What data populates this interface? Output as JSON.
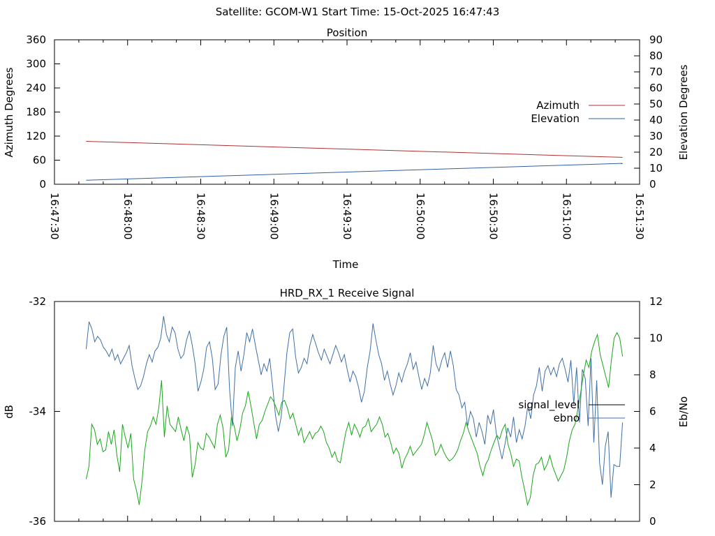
{
  "page": {
    "header": "Satellite: GCOM-W1    Start Time: 15-Oct-2025 16:47:43"
  },
  "chart_data": [
    {
      "type": "line",
      "title": "Position",
      "xlabel": "Time",
      "ylabel": "Azimuth Degrees",
      "y2label": "Elevation Degrees",
      "x_range": [
        "16:47:30",
        "16:51:30"
      ],
      "x_ticks": [
        "16:47:30",
        "16:48:00",
        "16:48:30",
        "16:49:00",
        "16:49:30",
        "16:50:00",
        "16:50:30",
        "16:51:00",
        "16:51:30"
      ],
      "ylim": [
        0,
        360
      ],
      "y_ticks": [
        0,
        60,
        120,
        180,
        240,
        300,
        360
      ],
      "y2lim": [
        0,
        90
      ],
      "y2_ticks": [
        0,
        10,
        20,
        30,
        40,
        50,
        60,
        70,
        80,
        90
      ],
      "legend_position": "right",
      "series": [
        {
          "name": "Azimuth",
          "axis": "y",
          "color": "#b03030",
          "x": [
            "16:47:43",
            "16:51:23"
          ],
          "y": [
            107,
            67
          ]
        },
        {
          "name": "Elevation",
          "axis": "y2",
          "color": "#3060a0",
          "x": [
            "16:47:43",
            "16:51:23"
          ],
          "y": [
            2.5,
            13
          ]
        }
      ]
    },
    {
      "type": "line",
      "title": "HRD_RX_1 Receive Signal",
      "ylabel": "dB",
      "y2label": "Eb/No",
      "ylim": [
        -36,
        -32
      ],
      "y_ticks": [
        -36,
        -34,
        -32
      ],
      "y2lim": [
        0,
        12
      ],
      "y2_ticks": [
        0,
        2,
        4,
        6,
        8,
        10,
        12
      ],
      "legend_position": "right",
      "series": [
        {
          "name": "signal_level",
          "axis": "y",
          "color": "#000000",
          "values": []
        },
        {
          "name": "ebno",
          "axis": "y2",
          "color": "#3f6fa8",
          "values": [
            9.4,
            10.9,
            10.5,
            9.8,
            10.1,
            9.9,
            9.5,
            9.3,
            9.0,
            9.4,
            8.8,
            9.1,
            8.6,
            8.9,
            9.2,
            9.6,
            8.5,
            7.8,
            7.2,
            7.4,
            7.9,
            8.6,
            9.1,
            8.7,
            9.3,
            9.5,
            10.0,
            11.2,
            10.2,
            9.8,
            10.6,
            10.3,
            9.4,
            8.9,
            9.1,
            9.9,
            10.4,
            9.6,
            8.6,
            7.1,
            7.6,
            8.3,
            9.5,
            9.8,
            8.9,
            7.2,
            7.5,
            9.1,
            10.1,
            10.6,
            7.2,
            5.2,
            8.4,
            9.3,
            8.2,
            9.1,
            10.3,
            9.8,
            10.5,
            9.6,
            8.8,
            8.0,
            8.6,
            8.2,
            8.9,
            7.4,
            5.8,
            4.9,
            5.7,
            7.4,
            9.2,
            10.3,
            10.5,
            9.0,
            8.1,
            8.4,
            8.9,
            8.6,
            9.6,
            10.2,
            9.7,
            9.2,
            8.8,
            9.4,
            9.0,
            8.6,
            9.1,
            9.6,
            9.2,
            8.7,
            9.1,
            8.3,
            7.6,
            8.2,
            7.9,
            7.3,
            6.5,
            7.1,
            8.4,
            9.3,
            10.8,
            9.9,
            9.1,
            8.6,
            7.7,
            8.2,
            7.5,
            6.9,
            7.4,
            8.1,
            7.6,
            8.2,
            8.6,
            9.2,
            8.3,
            8.7,
            7.9,
            7.2,
            7.8,
            7.4,
            8.1,
            9.6,
            8.6,
            8.2,
            8.8,
            9.2,
            8.4,
            9.3,
            8.5,
            7.2,
            6.9,
            6.2,
            6.5,
            5.2,
            6.0,
            5.6,
            4.6,
            5.4,
            4.9,
            4.2,
            5.8,
            5.3,
            6.1,
            4.8,
            4.1,
            3.4,
            4.2,
            5.1,
            4.6,
            5.7,
            4.3,
            5.0,
            4.5,
            5.2,
            6.3,
            5.6,
            6.9,
            7.4,
            8.4,
            7.1,
            8.2,
            8.5,
            8.0,
            8.4,
            7.9,
            8.6,
            8.9,
            8.3,
            7.6,
            8.8,
            6.4,
            8.4,
            5.4,
            8.3,
            7.8,
            5.2,
            8.9,
            4.3,
            7.7,
            3.2,
            2.0,
            4.1,
            4.9,
            1.3,
            3.1,
            3.0,
            3.0,
            5.4
          ],
          "segments_note": "plotted across full panel width"
        },
        {
          "name": "",
          "axis": "y2",
          "color": "#1aa51a",
          "values": [
            2.3,
            3.0,
            5.3,
            5.0,
            4.2,
            4.5,
            3.8,
            3.9,
            4.9,
            4.2,
            5.0,
            3.6,
            2.7,
            5.3,
            4.6,
            4.0,
            4.8,
            2.3,
            1.7,
            0.9,
            2.2,
            3.9,
            4.9,
            5.2,
            5.7,
            5.3,
            6.2,
            7.7,
            4.6,
            6.3,
            5.3,
            5.1,
            4.9,
            5.7,
            5.0,
            4.4,
            5.2,
            4.7,
            2.4,
            3.1,
            4.3,
            4.0,
            3.9,
            4.8,
            4.6,
            4.3,
            4.0,
            5.3,
            5.8,
            5.1,
            3.5,
            3.9,
            5.7,
            5.2,
            4.4,
            5.0,
            5.9,
            6.3,
            7.1,
            6.3,
            5.4,
            4.5,
            5.3,
            5.5,
            6.0,
            6.4,
            6.8,
            6.6,
            6.2,
            5.8,
            6.5,
            6.6,
            6.2,
            5.6,
            5.9,
            5.3,
            4.7,
            5.1,
            4.3,
            4.6,
            4.9,
            4.5,
            4.8,
            4.9,
            5.2,
            4.9,
            4.3,
            4.0,
            3.5,
            3.8,
            3.3,
            3.2,
            4.1,
            4.9,
            5.4,
            4.7,
            5.3,
            5.0,
            4.6,
            5.1,
            5.2,
            5.6,
            4.9,
            5.1,
            5.3,
            5.7,
            5.3,
            4.6,
            4.8,
            4.3,
            3.7,
            4.0,
            3.7,
            2.9,
            3.4,
            3.7,
            4.1,
            3.6,
            3.8,
            4.0,
            4.2,
            4.7,
            5.4,
            4.9,
            4.4,
            3.6,
            3.8,
            4.2,
            3.8,
            3.5,
            3.3,
            3.4,
            3.6,
            3.9,
            4.4,
            4.8,
            5.4,
            4.9,
            4.5,
            4.1,
            3.7,
            3.0,
            2.5,
            3.1,
            3.4,
            3.9,
            4.3,
            4.7,
            4.5,
            5.0,
            5.3,
            4.2,
            3.7,
            3.0,
            3.4,
            3.3,
            2.4,
            1.7,
            0.9,
            1.3,
            2.5,
            3.1,
            3.2,
            3.5,
            2.8,
            3.1,
            3.6,
            3.0,
            2.6,
            2.2,
            2.5,
            2.8,
            3.5,
            4.4,
            5.0,
            5.3,
            6.1,
            7.0,
            8.0,
            8.8,
            8.4,
            9.3,
            9.8,
            10.2,
            9.1,
            8.5,
            7.9,
            7.3,
            8.8,
            10.0,
            10.3,
            10.0,
            9.0
          ]
        }
      ]
    }
  ]
}
